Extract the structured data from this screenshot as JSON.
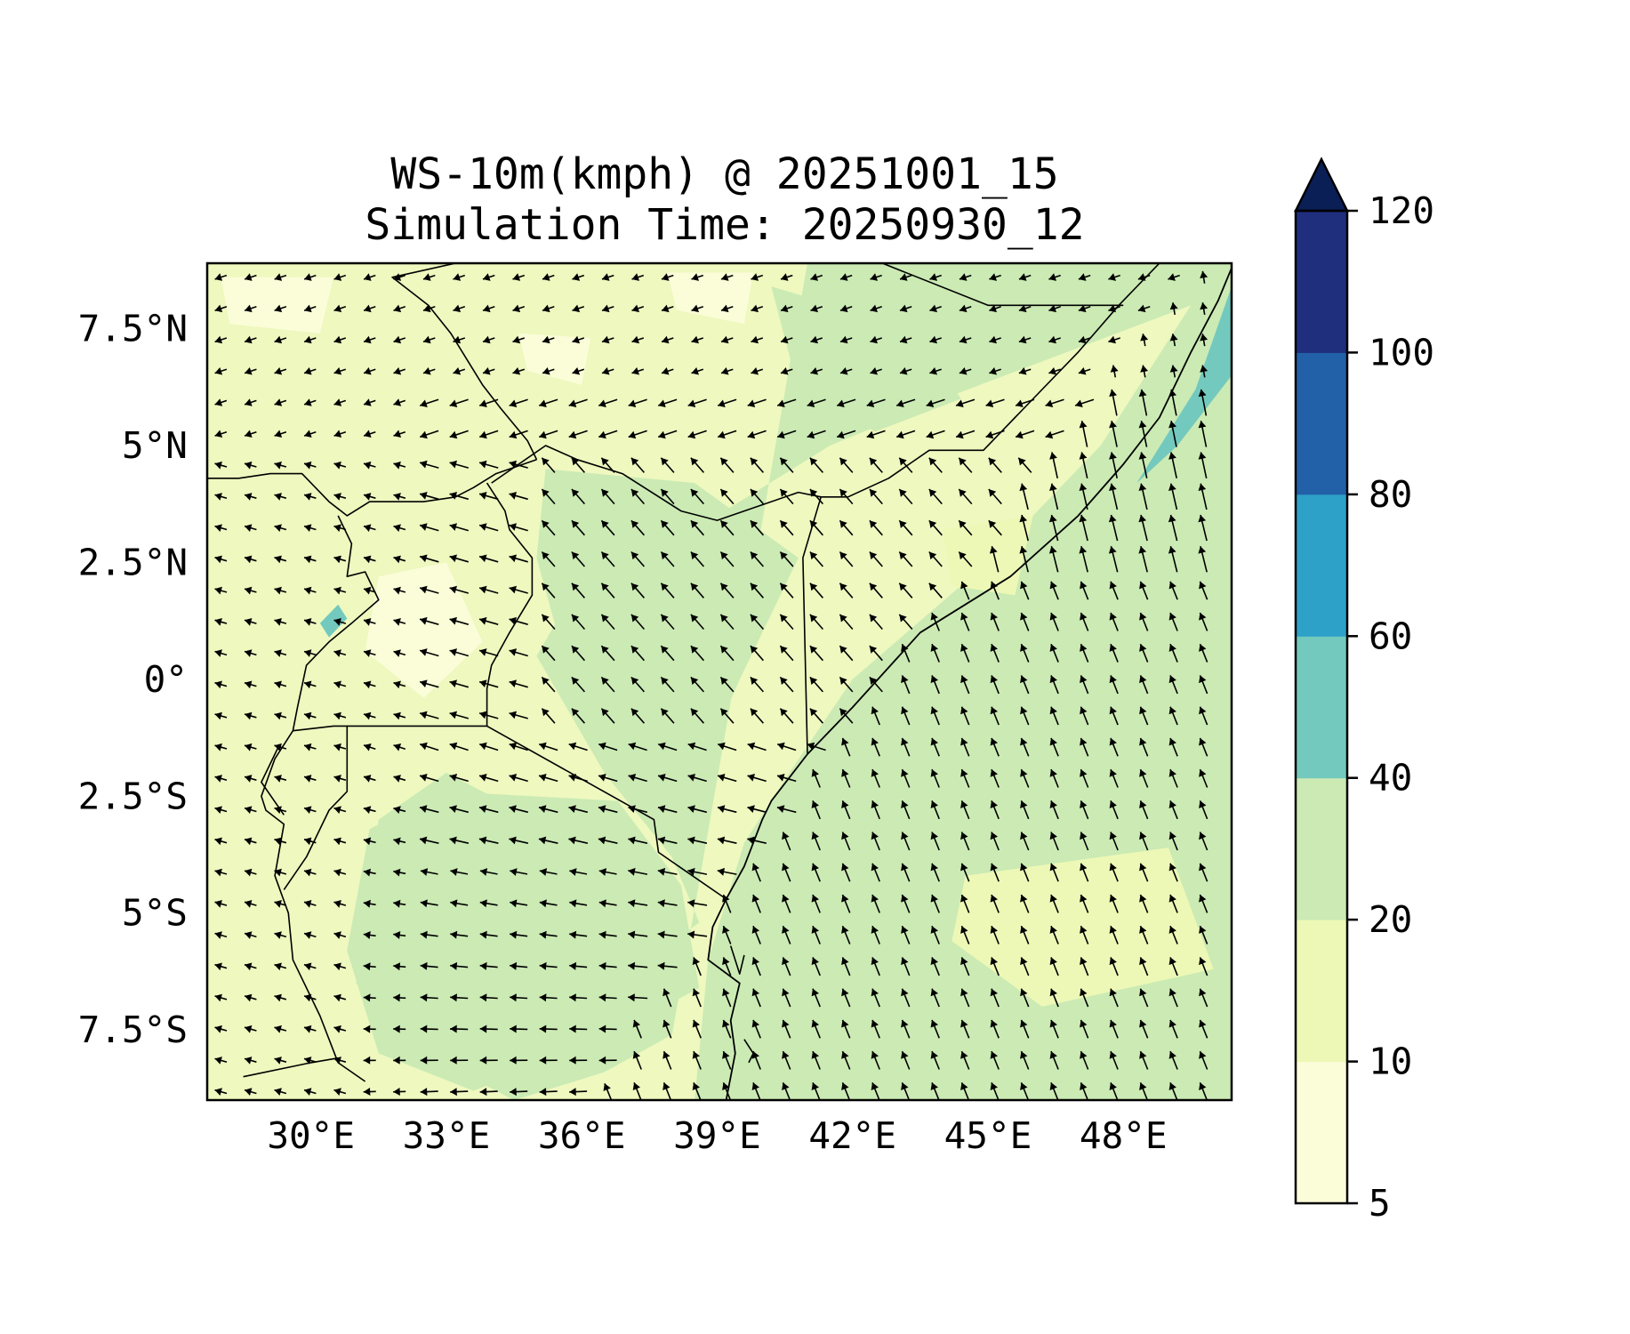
{
  "title": {
    "line1": "WS-10m(kmph) @ 20251001_15",
    "line2": "Simulation Time: 20250930_12"
  },
  "map": {
    "lon_range": [
      27.7,
      50.4
    ],
    "lat_range": [
      -9.0,
      8.9
    ],
    "x_ticks": [
      {
        "value": 30,
        "label": "30°E"
      },
      {
        "value": 33,
        "label": "33°E"
      },
      {
        "value": 36,
        "label": "36°E"
      },
      {
        "value": 39,
        "label": "39°E"
      },
      {
        "value": 42,
        "label": "42°E"
      },
      {
        "value": 45,
        "label": "45°E"
      },
      {
        "value": 48,
        "label": "48°E"
      }
    ],
    "y_ticks": [
      {
        "value": 7.5,
        "label": "7.5°N"
      },
      {
        "value": 5,
        "label": "5°N"
      },
      {
        "value": 2.5,
        "label": "2.5°N"
      },
      {
        "value": 0,
        "label": "0°"
      },
      {
        "value": -2.5,
        "label": "2.5°S"
      },
      {
        "value": -5,
        "label": "5°S"
      },
      {
        "value": -7.5,
        "label": "7.5°S"
      }
    ],
    "field": "10 m wind speed with wind-direction arrows",
    "dominant_flow": "southeasterly over Indian Ocean, turning southerly along Somali coast"
  },
  "colorbar": {
    "levels": [
      5,
      10,
      20,
      40,
      60,
      80,
      100,
      120
    ],
    "labels": [
      "5",
      "10",
      "20",
      "40",
      "60",
      "80",
      "100",
      "120"
    ],
    "colors": [
      "#fbfdd8",
      "#edf8b6",
      "#cbeab4",
      "#73c9bd",
      "#2ea1c8",
      "#2260a8",
      "#1f2e7d",
      "#0b1f57"
    ],
    "extend": "max"
  },
  "colors": {
    "water": "#cde9b5",
    "land": "#eef8bf",
    "border": "#000000",
    "arrow": "#000000"
  }
}
